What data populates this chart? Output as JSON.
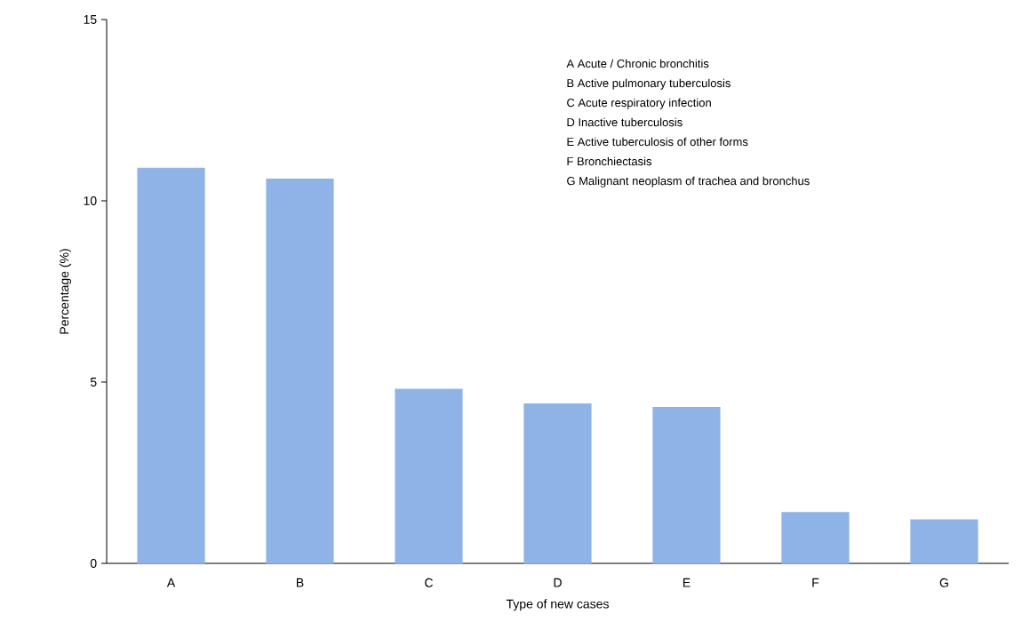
{
  "chart_data": {
    "type": "bar",
    "xlabel": "Type of new cases",
    "ylabel": "Percentage (%)",
    "categories": [
      "A",
      "B",
      "C",
      "D",
      "E",
      "F",
      "G"
    ],
    "values": [
      10.9,
      10.6,
      4.8,
      4.4,
      4.3,
      1.4,
      1.2
    ],
    "color": "#8fb3e6",
    "ylim": [
      0,
      15
    ],
    "yticks": [
      0,
      5,
      10,
      15
    ],
    "grid": false,
    "annotations": [
      "A  Acute / Chronic bronchitis",
      "B  Active pulmonary tuberculosis",
      "C  Acute respiratory infection",
      "D  Inactive tuberculosis",
      "E  Active tuberculosis of other forms",
      "F  Bronchiectasis",
      "G  Malignant neoplasm of trachea and bronchus"
    ]
  }
}
